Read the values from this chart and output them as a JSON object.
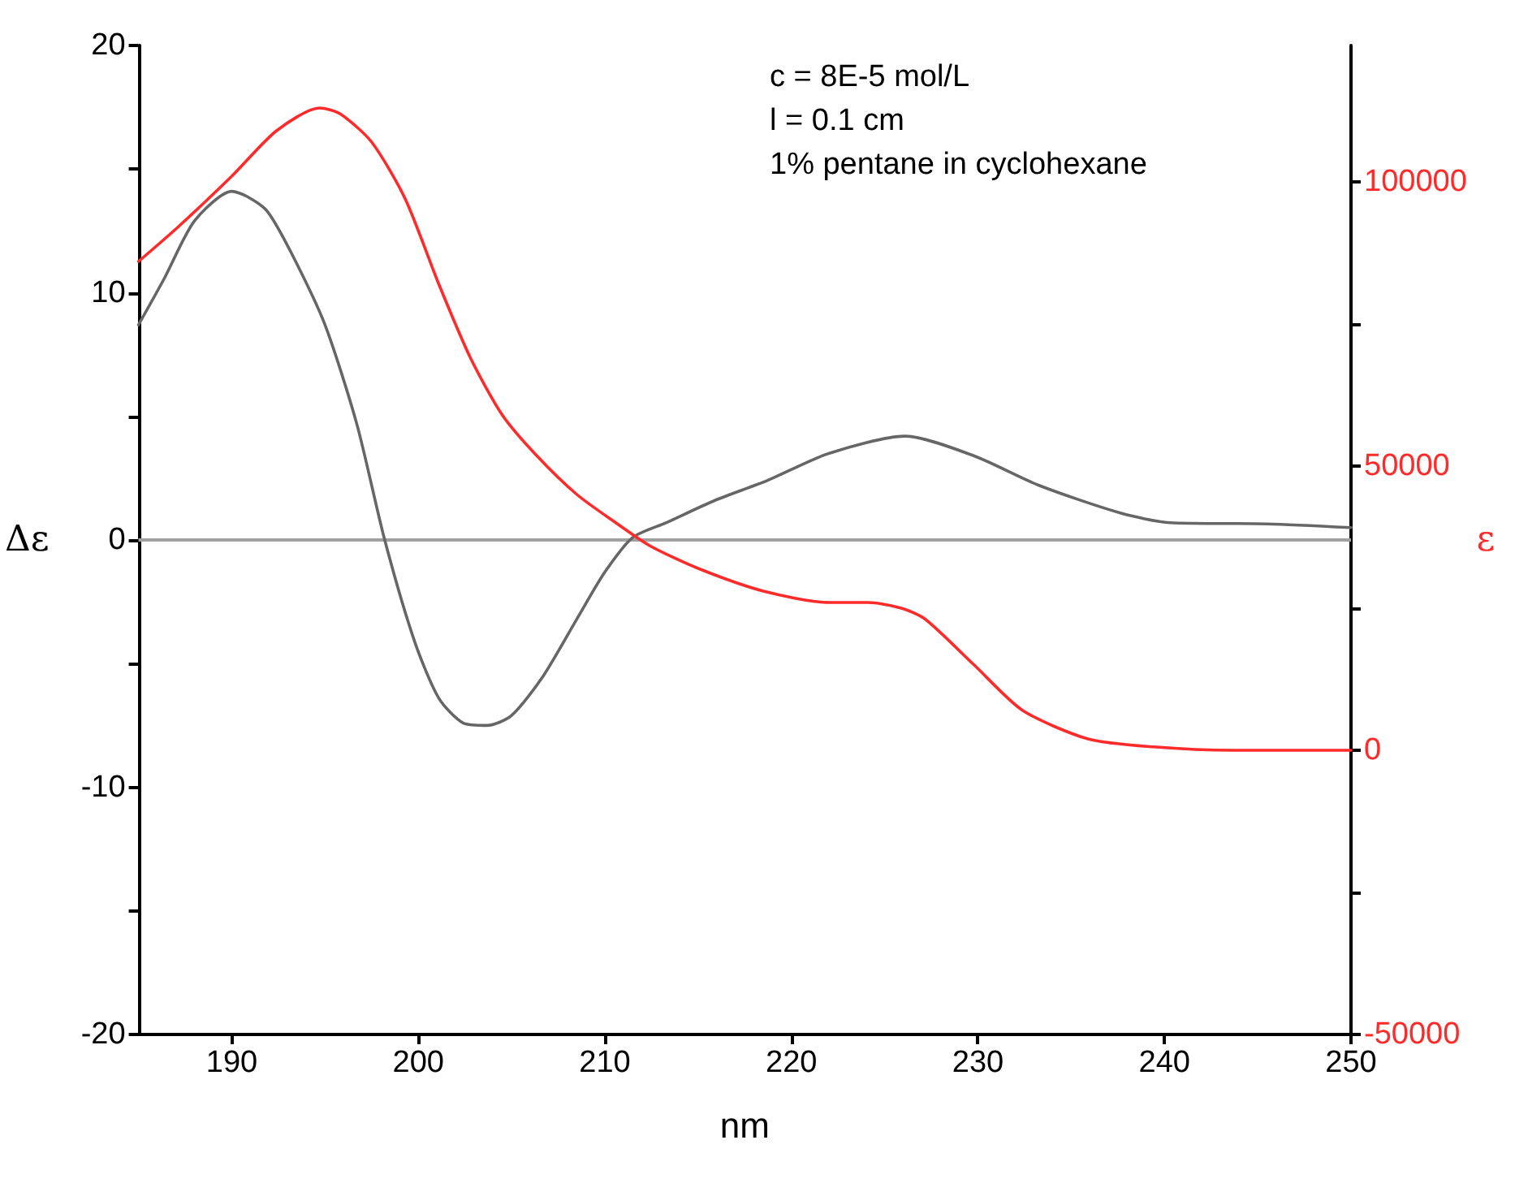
{
  "chart_data": {
    "type": "line",
    "xlabel": "nm",
    "ylabel": "Δε",
    "y2label": "ε",
    "annotations": [
      "c = 8E-5 mol/L",
      "l = 0.1 cm",
      "1% pentane in cyclohexane"
    ],
    "xlim": [
      185,
      250
    ],
    "xticks": [
      190,
      200,
      210,
      220,
      230,
      240,
      250
    ],
    "ylim": [
      -20,
      20
    ],
    "yticks": [
      -20,
      {
        "value": -15,
        "label": null
      },
      -10,
      {
        "value": -5,
        "label": null
      },
      0,
      {
        "value": 5,
        "label": null
      },
      10,
      {
        "value": 15,
        "label": null
      },
      20
    ],
    "y2lim": [
      -50000,
      124000
    ],
    "y2ticks": [
      -50000,
      {
        "value": -25000,
        "label": null
      },
      0,
      {
        "value": 25000,
        "label": null
      },
      50000,
      {
        "value": 75000,
        "label": null
      },
      100000
    ],
    "grid": false,
    "marker": "none",
    "line_style": "solid",
    "ref_lines": [
      {
        "axis": "y",
        "value": 0,
        "color": "#a0a0a0"
      }
    ],
    "series": [
      {
        "color": "#666666",
        "x": [
          185,
          186.4,
          188,
          190,
          190.8,
          191.9,
          193.2,
          195,
          196.7,
          198.2,
          199.8,
          201.1,
          202.4,
          203.7,
          205,
          206.7,
          208.5,
          210,
          211.5,
          213.3,
          215.9,
          218.7,
          222,
          226.1,
          229.8,
          233.3,
          237.6,
          240.3,
          245.5,
          250
        ],
        "values": [
          8.7,
          10.6,
          12.9,
          14.1,
          13.9,
          13.3,
          11.6,
          8.7,
          4.7,
          0,
          -4.1,
          -6.4,
          -7.4,
          -7.5,
          -7.1,
          -5.5,
          -3.2,
          -1.3,
          0.1,
          0.7,
          1.6,
          2.4,
          3.5,
          4.2,
          3.4,
          2.2,
          1.1,
          0.7,
          0.65,
          0.5
        ]
      },
      {
        "color": "#ff2a2a",
        "axis": "y2",
        "x": [
          185,
          187.1,
          190,
          192.4,
          194.7,
          195.8,
          197.5,
          199.3,
          201.1,
          202.8,
          204.5,
          206.3,
          208.5,
          210.6,
          212.4,
          215,
          218.5,
          222,
          224.1,
          225.9,
          227.2,
          229.8,
          232.4,
          235.9,
          239.4,
          243.7,
          250
        ],
        "values": [
          86000,
          92000,
          101000,
          109000,
          113000,
          112000,
          107000,
          97000,
          82000,
          69000,
          59000,
          52000,
          45000,
          40000,
          36000,
          32000,
          28000,
          26000,
          26000,
          25000,
          23000,
          15000,
          7000,
          2000,
          600,
          0,
          0
        ]
      }
    ]
  }
}
